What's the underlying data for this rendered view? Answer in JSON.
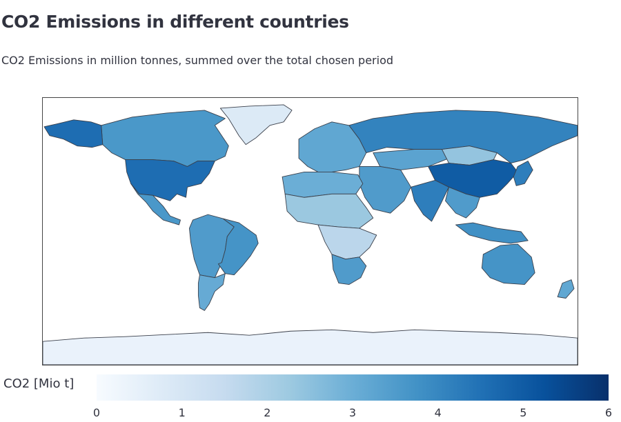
{
  "title": "CO2 Emissions in different countries",
  "subtitle": "CO2 Emissions in million tonnes, summed over the total chosen period",
  "colorbar": {
    "title": "CO2 [Mio t]",
    "min": 0,
    "max": 6,
    "ticks": [
      "0",
      "1",
      "2",
      "3",
      "4",
      "5",
      "6"
    ],
    "colorscale": [
      "#f7fbff",
      "#deebf7",
      "#c6dbef",
      "#9ecae1",
      "#6baed6",
      "#4292c6",
      "#2171b5",
      "#08519c",
      "#08306b"
    ]
  },
  "map_data": {
    "type": "choropleth",
    "projection": "equirectangular",
    "regions": [
      {
        "name": "Canada",
        "value": 3.6
      },
      {
        "name": "Alaska",
        "value": 4.6
      },
      {
        "name": "United States",
        "value": 4.6
      },
      {
        "name": "Mexico",
        "value": 3.6
      },
      {
        "name": "Greenland",
        "value": 0.8
      },
      {
        "name": "South America",
        "value": 3.5
      },
      {
        "name": "Brazil",
        "value": 3.7
      },
      {
        "name": "Argentina",
        "value": 3.1
      },
      {
        "name": "Europe",
        "value": 3.2
      },
      {
        "name": "Russia",
        "value": 4.1
      },
      {
        "name": "Kazakhstan",
        "value": 3.3
      },
      {
        "name": "Mongolia",
        "value": 2.4
      },
      {
        "name": "China",
        "value": 5.0
      },
      {
        "name": "India",
        "value": 4.2
      },
      {
        "name": "Middle East",
        "value": 3.5
      },
      {
        "name": "North Africa",
        "value": 3.0
      },
      {
        "name": "Sahara",
        "value": 2.3
      },
      {
        "name": "Central Africa",
        "value": 1.7
      },
      {
        "name": "Southern Africa",
        "value": 3.5
      },
      {
        "name": "Southeast Asia",
        "value": 3.5
      },
      {
        "name": "Indonesia",
        "value": 3.8
      },
      {
        "name": "Japan",
        "value": 4.2
      },
      {
        "name": "Australia",
        "value": 3.7
      },
      {
        "name": "New Zealand",
        "value": 3.2
      },
      {
        "name": "Antarctica",
        "value": 0.4
      }
    ]
  }
}
